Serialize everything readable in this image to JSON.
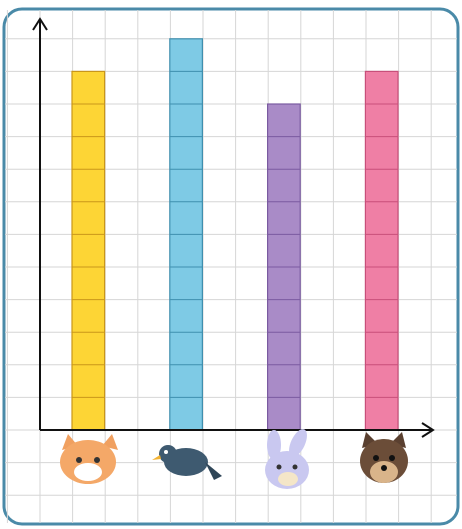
{
  "chart_data": {
    "type": "bar",
    "categories": [
      null,
      null,
      null,
      null
    ],
    "values": [
      11,
      12,
      10,
      11
    ],
    "colors": [
      "#fdd535",
      "#7ecae5",
      "#a98bc7",
      "#ef7fa5"
    ],
    "ylim": [
      0,
      12.6
    ],
    "grid": true
  }
}
